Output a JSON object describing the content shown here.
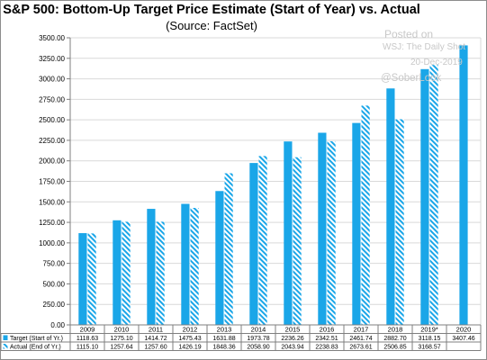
{
  "chart_data": {
    "type": "bar",
    "title": "S&P 500: Bottom-Up  Target Price Estimate (Start of Year) vs. Actual",
    "subtitle": "(Source: FactSet)",
    "categories": [
      "2009",
      "2010",
      "2011",
      "2012",
      "2013",
      "2014",
      "2015",
      "2016",
      "2017",
      "2018",
      "2019*",
      "2020"
    ],
    "ylim": [
      0,
      3500
    ],
    "yticks": [
      "0.00",
      "250.00",
      "500.00",
      "750.00",
      "1000.00",
      "1250.00",
      "1500.00",
      "1750.00",
      "2000.00",
      "2250.00",
      "2500.00",
      "2750.00",
      "3000.00",
      "3250.00",
      "3500.00"
    ],
    "grid": true,
    "series": [
      {
        "name": "Target (Start of Yr.)",
        "color": "#1aa6e8",
        "pattern": "solid",
        "values": [
          1118.63,
          1275.1,
          1414.72,
          1475.43,
          1631.88,
          1973.78,
          2236.26,
          2342.51,
          2461.74,
          2882.7,
          3118.15,
          3407.46
        ],
        "labels": [
          "1118.63",
          "1275.10",
          "1414.72",
          "1475.43",
          "1631.88",
          "1973.78",
          "2236.26",
          "2342.51",
          "2461.74",
          "2882.70",
          "3118.15",
          "3407.46"
        ]
      },
      {
        "name": "Actual (End of Yr.)",
        "color": "#1aa6e8",
        "pattern": "hatched",
        "values": [
          1115.1,
          1257.64,
          1257.6,
          1426.19,
          1848.36,
          2058.9,
          2043.94,
          2238.83,
          2673.61,
          2506.85,
          3168.57,
          null
        ],
        "labels": [
          "1115.10",
          "1257.64",
          "1257.60",
          "1426.19",
          "1848.36",
          "2058.90",
          "2043.94",
          "2238.83",
          "2673.61",
          "2506.85",
          "3168.57",
          ""
        ]
      }
    ]
  },
  "watermark": {
    "line1": "Posted on",
    "line2": "WSJ: The Daily Shot",
    "line3": "20-Dec-2019",
    "line4": "@SoberLook"
  }
}
